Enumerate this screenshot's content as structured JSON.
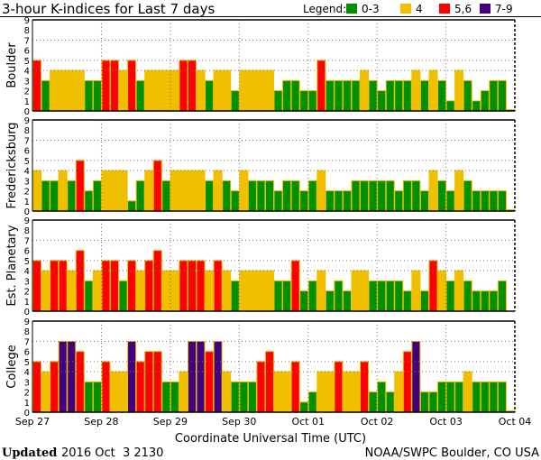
{
  "chart_data": {
    "type": "bar",
    "title": "3-hour K-indices for Last 7 days",
    "legend": {
      "label": "Legend:",
      "placement": "top-right",
      "entries": [
        {
          "label": "0-3",
          "color": "#009000"
        },
        {
          "label": "4",
          "color": "#f0c000"
        },
        {
          "label": "5,6",
          "color": "#ff0000"
        },
        {
          "label": "7-9",
          "color": "#400080"
        }
      ]
    },
    "xlabel": "Coordinate Universal Time (UTC)",
    "x_ticks": [
      "Sep 27",
      "Sep 28",
      "Sep 29",
      "Sep 30",
      "Oct 01",
      "Oct 02",
      "Oct 03",
      "Oct 04"
    ],
    "y_ticks": [
      "0",
      "1",
      "2",
      "3",
      "4",
      "5",
      "6",
      "7",
      "8",
      "9"
    ],
    "ylim": [
      0,
      9
    ],
    "grid_y": [
      4,
      5,
      7
    ],
    "bars_per_day": 8,
    "panels": [
      {
        "name": "Boulder",
        "values": [
          5,
          3,
          4,
          4,
          4,
          4,
          3,
          3,
          5,
          5,
          4,
          5,
          3,
          4,
          4,
          4,
          4,
          5,
          5,
          4,
          3,
          4,
          4,
          2,
          4,
          4,
          4,
          4,
          2,
          3,
          3,
          2,
          2,
          5,
          3,
          3,
          3,
          3,
          4,
          3,
          2,
          3,
          3,
          3,
          4,
          3,
          4,
          3,
          1,
          4,
          3,
          1,
          2,
          3,
          3,
          0
        ]
      },
      {
        "name": "Fredericksburg",
        "values": [
          4,
          3,
          3,
          4,
          3,
          5,
          2,
          3,
          4,
          4,
          4,
          1,
          3,
          4,
          5,
          3,
          4,
          4,
          4,
          4,
          3,
          4,
          3,
          2,
          4,
          3,
          3,
          3,
          2,
          3,
          3,
          2,
          3,
          4,
          2,
          2,
          2,
          3,
          3,
          3,
          3,
          3,
          2,
          3,
          3,
          2,
          4,
          3,
          2,
          4,
          3,
          2,
          2,
          2,
          2,
          0
        ]
      },
      {
        "name": "Est. Planetary",
        "values": [
          5,
          4,
          5,
          5,
          4,
          6,
          3,
          4,
          5,
          5,
          3,
          5,
          4,
          5,
          6,
          4,
          4,
          5,
          5,
          5,
          4,
          5,
          4,
          3,
          4,
          4,
          4,
          4,
          3,
          3,
          5,
          2,
          3,
          4,
          2,
          3,
          2,
          4,
          4,
          3,
          3,
          3,
          3,
          2,
          4,
          2,
          5,
          4,
          3,
          4,
          3,
          2,
          2,
          2,
          3,
          null
        ]
      },
      {
        "name": "College",
        "values": [
          5,
          4,
          5,
          7,
          7,
          6,
          3,
          3,
          5,
          4,
          4,
          7,
          5,
          6,
          6,
          3,
          3,
          4,
          7,
          7,
          6,
          7,
          4,
          3,
          3,
          3,
          5,
          6,
          4,
          4,
          5,
          1,
          2,
          4,
          4,
          5,
          4,
          4,
          5,
          2,
          3,
          2,
          4,
          6,
          7,
          2,
          2,
          3,
          3,
          3,
          4,
          3,
          3,
          3,
          3,
          0
        ]
      }
    ]
  },
  "footer": {
    "updated_label": "Updated",
    "updated_value": "2016 Oct  3 2130",
    "credit": "NOAA/SWPC Boulder, CO USA"
  }
}
